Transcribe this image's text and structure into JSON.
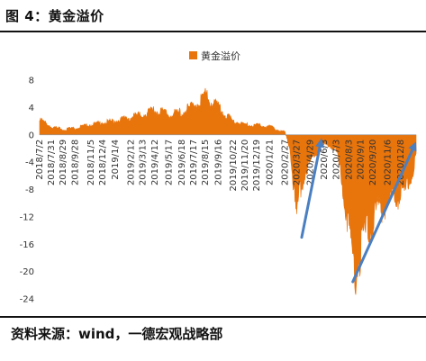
{
  "figure": {
    "title": "图 4：黄金溢价",
    "source": "资料来源：wind，一德宏观战略部"
  },
  "chart_data": {
    "type": "area",
    "legend": [
      "黄金溢价"
    ],
    "legend_position": "top-center",
    "color": "#E8740C",
    "arrow_color": "#4A7FC1",
    "ylim": [
      -24,
      8
    ],
    "yticks": [
      8,
      4,
      0,
      -4,
      -8,
      -12,
      -16,
      -20,
      -24
    ],
    "x_range": [
      "2018/7/2",
      "2021/1/15"
    ],
    "xticks": [
      "2018/7/2",
      "2018/7/31",
      "2018/8/29",
      "2018/9/28",
      "2018/11/5",
      "2018/12/4",
      "2019/1/4",
      "2019/2/12",
      "2019/3/13",
      "2019/4/12",
      "2019/5/17",
      "2019/6/18",
      "2019/7/17",
      "2019/8/15",
      "2019/9/16",
      "2019/10/22",
      "2019/11/20",
      "2019/12/19",
      "2020/1/21",
      "2020/2/27",
      "2020/3/27",
      "2020/4/29",
      "2020/6/3",
      "2020/7/3",
      "2020/8/3",
      "2020/9/1",
      "2020/9/30",
      "2020/11/6",
      "2020/12/8"
    ],
    "series": [
      {
        "name": "黄金溢价",
        "x": [
          "2018/7/2",
          "2018/7/31",
          "2018/8/29",
          "2018/9/28",
          "2018/11/5",
          "2018/12/4",
          "2019/1/4",
          "2019/2/12",
          "2019/3/13",
          "2019/4/12",
          "2019/5/17",
          "2019/6/18",
          "2019/7/17",
          "2019/8/1",
          "2019/8/15",
          "2019/8/28",
          "2019/9/16",
          "2019/10/1",
          "2019/10/22",
          "2019/11/20",
          "2019/12/19",
          "2020/1/21",
          "2020/2/27",
          "2020/3/10",
          "2020/3/20",
          "2020/3/27",
          "2020/4/1",
          "2020/4/15",
          "2020/4/29",
          "2020/5/15",
          "2020/6/3",
          "2020/6/15",
          "2020/7/3",
          "2020/7/20",
          "2020/8/3",
          "2020/8/12",
          "2020/8/20",
          "2020/9/1",
          "2020/9/15",
          "2020/9/30",
          "2020/10/15",
          "2020/11/6",
          "2020/11/20",
          "2020/12/8",
          "2020/12/22",
          "2021/1/8",
          "2021/1/15"
        ],
        "y": [
          2.2,
          1.2,
          0.8,
          1.0,
          1.5,
          1.8,
          2.0,
          2.6,
          2.9,
          3.6,
          3.0,
          3.3,
          4.2,
          5.0,
          5.8,
          4.8,
          4.2,
          3.0,
          2.0,
          1.5,
          1.4,
          1.2,
          0.3,
          -2.0,
          -8.0,
          -13.5,
          -9.0,
          -6.0,
          -4.0,
          -2.5,
          -1.5,
          -1.5,
          -2.5,
          -8.0,
          -14.0,
          -18.0,
          -20.0,
          -16.5,
          -14.0,
          -13.0,
          -11.0,
          -10.0,
          -9.0,
          -9.0,
          -8.0,
          -5.0,
          -3.0
        ]
      }
    ],
    "annotations": [
      {
        "type": "arrow",
        "from": [
          "2020/4/8",
          -15.0
        ],
        "to": [
          "2020/5/27",
          -0.5
        ]
      },
      {
        "type": "arrow",
        "from": [
          "2020/8/12",
          -21.5
        ],
        "to": [
          "2021/1/15",
          -1.0
        ]
      }
    ],
    "grid": false
  }
}
